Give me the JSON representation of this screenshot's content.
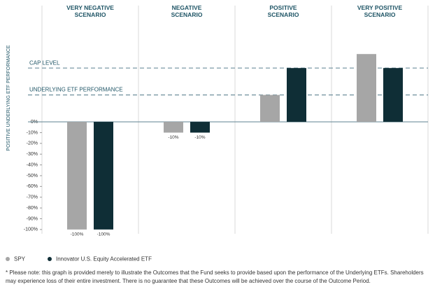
{
  "chart_data": {
    "type": "bar",
    "y_label": "POSITIVE UNDERLYING ETF PERFORMANCE",
    "categories": [
      "VERY NEGATIVE\nSCENARIO",
      "NEGATIVE\nSCENARIO",
      "POSITIVE\nSCENARIO",
      "VERY POSITIVE\nSCENARIO"
    ],
    "series": [
      {
        "name": "SPY",
        "color": "#a6a6a6",
        "values": [
          -100,
          -10,
          25,
          63
        ],
        "value_labels": [
          "-100%",
          "-10%",
          null,
          null
        ]
      },
      {
        "name": "Innovator U.S. Equity Accelerated ETF",
        "color": "#0f2e36",
        "values": [
          -100,
          -10,
          50,
          50
        ],
        "value_labels": [
          "-100%",
          "-10%",
          null,
          null
        ]
      }
    ],
    "reference_lines": [
      {
        "label": "CAP LEVEL",
        "value": 50
      },
      {
        "label": "UNDERLYING ETF PERFORMANCE",
        "value": 25
      }
    ],
    "ylim": [
      -104,
      108
    ],
    "yticks": [
      {
        "value": 0,
        "label": "0%"
      },
      {
        "value": -10,
        "label": "-10%"
      },
      {
        "value": -20,
        "label": "-20%"
      },
      {
        "value": -30,
        "label": "-30%"
      },
      {
        "value": -40,
        "label": "-40%"
      },
      {
        "value": -50,
        "label": "-50%"
      },
      {
        "value": -60,
        "label": "-60%"
      },
      {
        "value": -70,
        "label": "-70%"
      },
      {
        "value": -80,
        "label": "-80%"
      },
      {
        "value": -90,
        "label": "-90%"
      },
      {
        "value": -100,
        "label": "-100%"
      }
    ],
    "footnote": "* Please note: this graph is provided merely to illustrate the Outcomes that the Fund seeks to provide based upon the performance of the Underlying ETFs. Shareholders may experience loss of their entire investment. There is no guarantee that these Outcomes will be achieved over the course of the Outcome Period."
  }
}
